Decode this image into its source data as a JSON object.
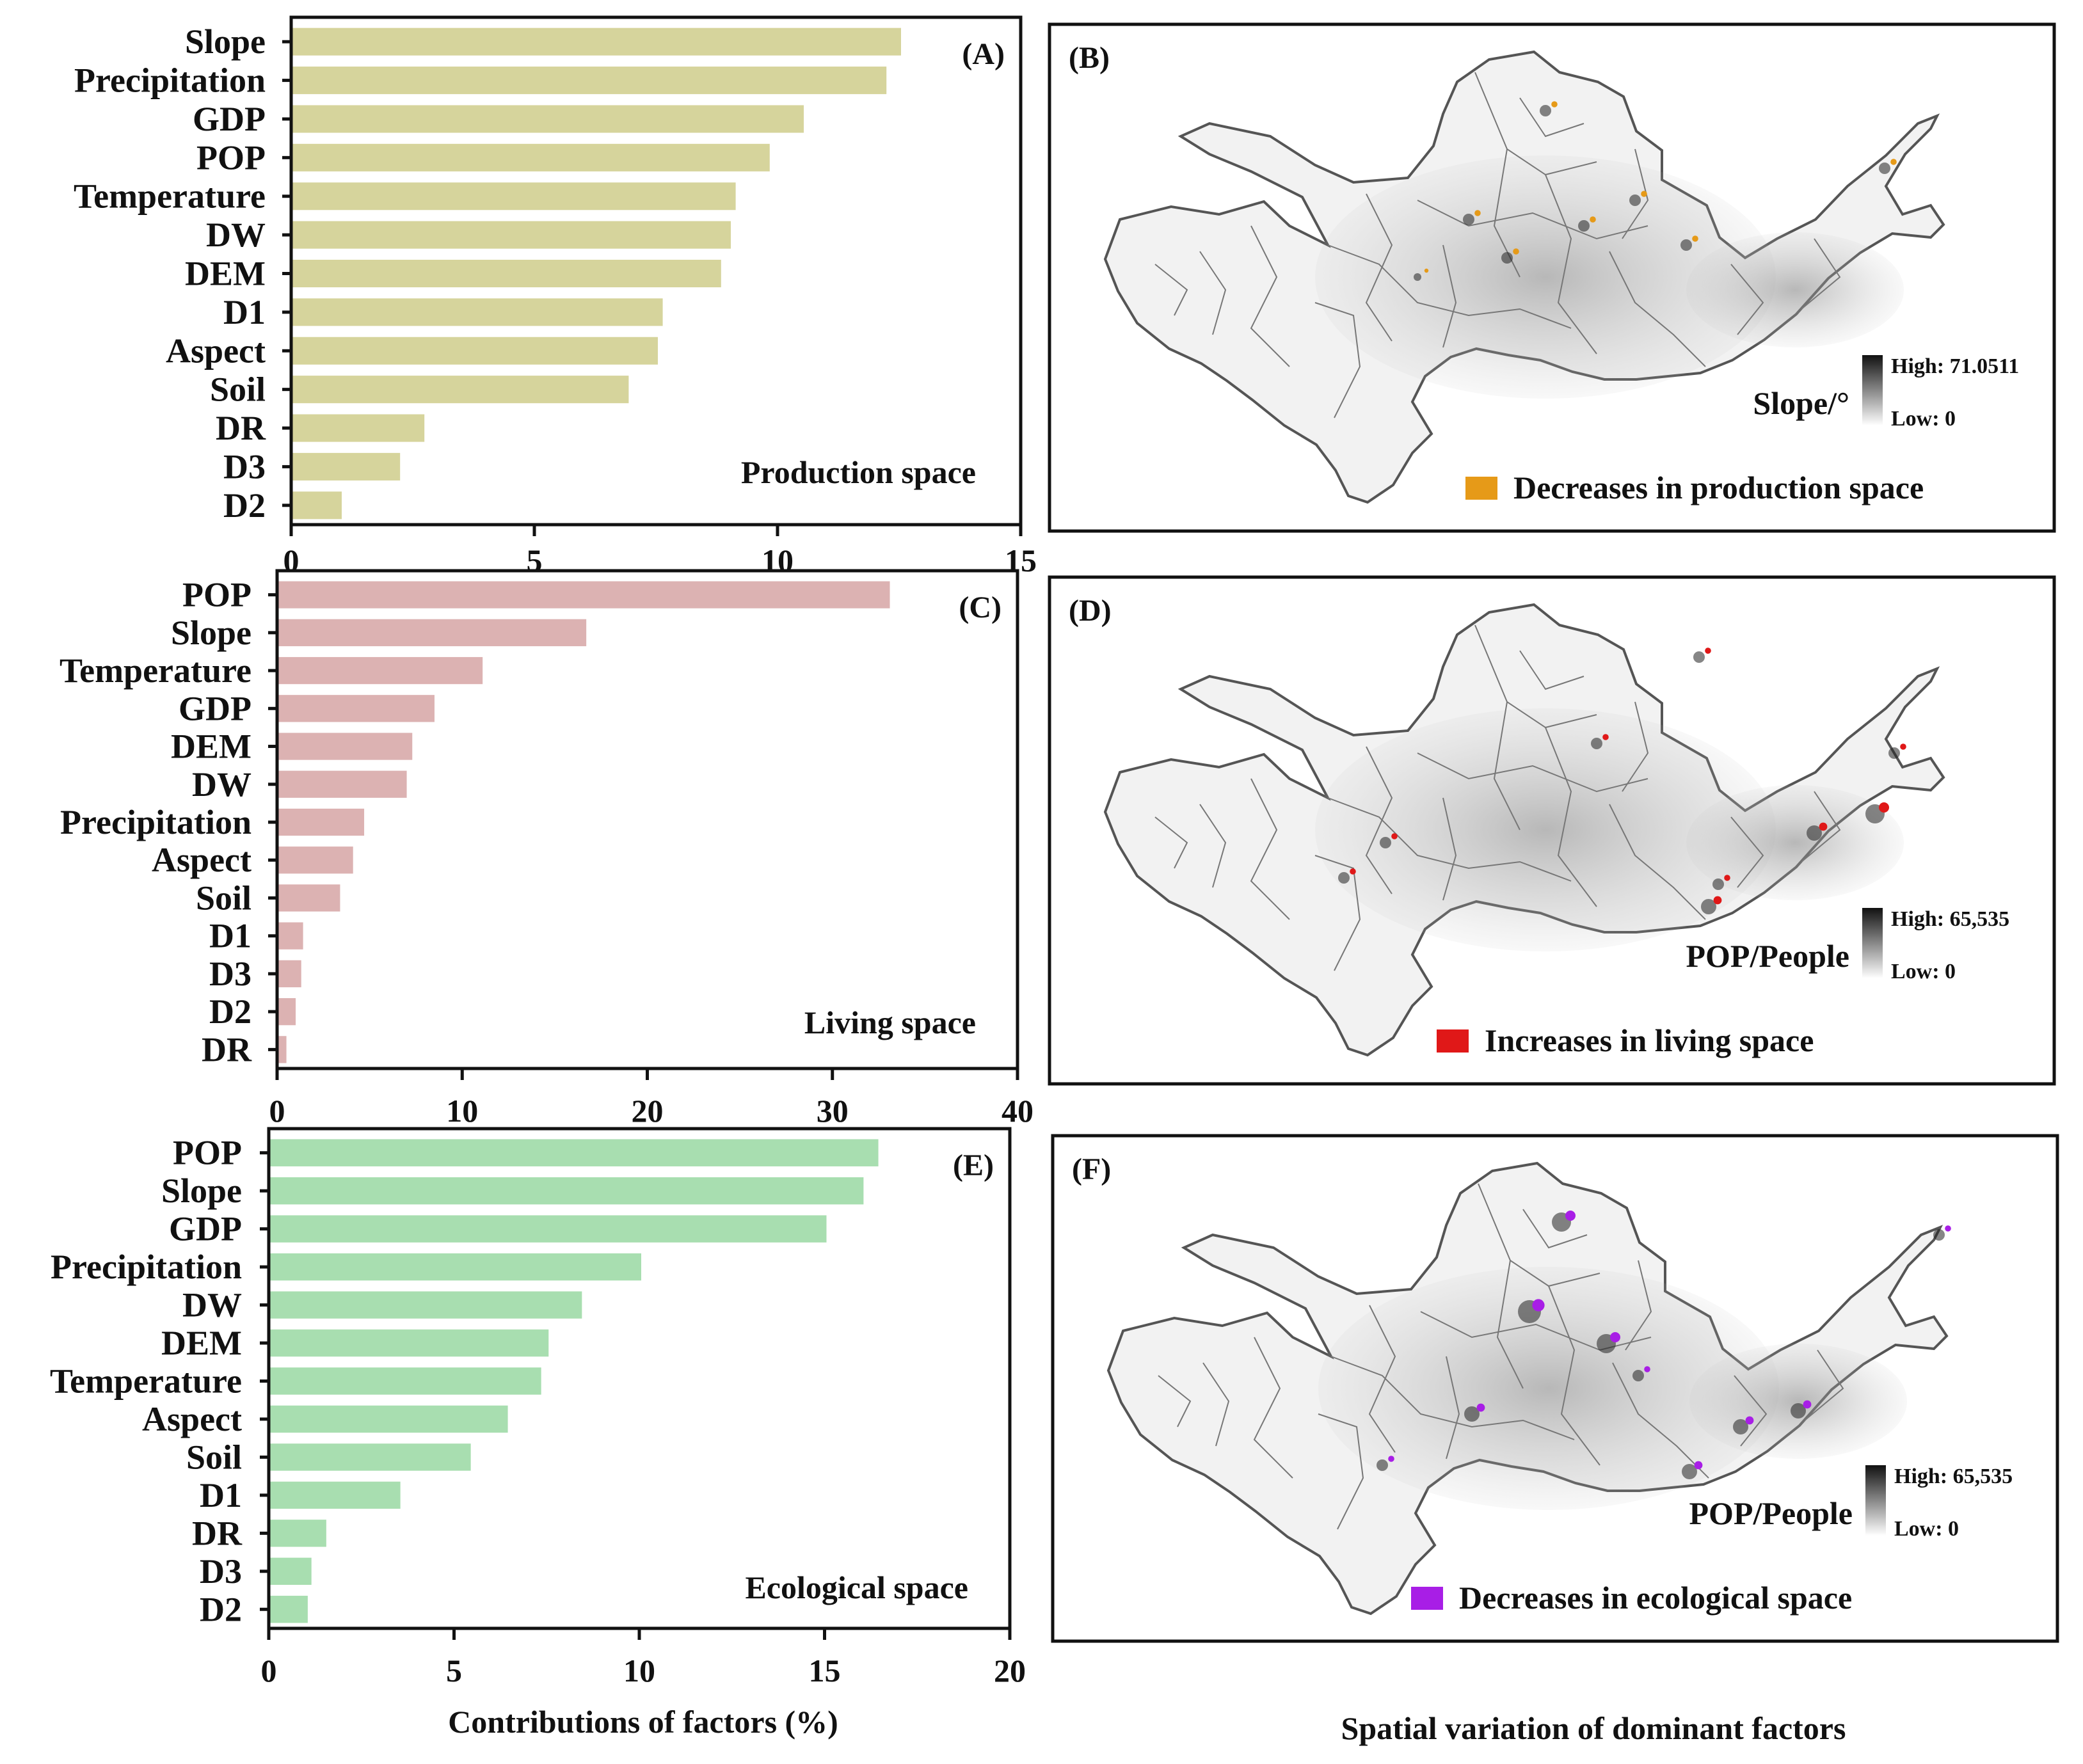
{
  "chart_data": [
    {
      "type": "bar",
      "orientation": "horizontal",
      "panel": "(A)",
      "inner_label": "Production space",
      "categories": [
        "Slope",
        "Precipitation",
        "GDP",
        "POP",
        "Temperature",
        "DW",
        "DEM",
        "D1",
        "Aspect",
        "Soil",
        "DR",
        "D3",
        "D2"
      ],
      "values": [
        12.5,
        12.2,
        10.5,
        9.8,
        9.1,
        9.0,
        8.8,
        7.6,
        7.5,
        6.9,
        2.7,
        2.2,
        1.0
      ],
      "xlim": [
        0,
        15
      ],
      "xticks": [
        "0",
        "5",
        "10",
        "15"
      ],
      "bar_color": "#d6d49c",
      "xlabel": ""
    },
    {
      "type": "bar",
      "orientation": "horizontal",
      "panel": "(C)",
      "inner_label": "Living space",
      "categories": [
        "POP",
        "Slope",
        "Temperature",
        "GDP",
        "DEM",
        "DW",
        "Precipitation",
        "Aspect",
        "Soil",
        "D1",
        "D3",
        "D2",
        "DR"
      ],
      "values": [
        33.0,
        16.6,
        11.0,
        8.4,
        7.2,
        6.9,
        4.6,
        4.0,
        3.3,
        1.3,
        1.2,
        0.9,
        0.4
      ],
      "xlim": [
        0,
        40
      ],
      "xticks": [
        "0",
        "10",
        "20",
        "30",
        "40"
      ],
      "bar_color": "#dcb2b2",
      "xlabel": ""
    },
    {
      "type": "bar",
      "orientation": "horizontal",
      "panel": "(E)",
      "inner_label": "Ecological space",
      "categories": [
        "POP",
        "Slope",
        "GDP",
        "Precipitation",
        "DW",
        "DEM",
        "Temperature",
        "Aspect",
        "Soil",
        "D1",
        "DR",
        "D3",
        "D2"
      ],
      "values": [
        16.4,
        16.0,
        15.0,
        10.0,
        8.4,
        7.5,
        7.3,
        6.4,
        5.4,
        3.5,
        1.5,
        1.1,
        1.0
      ],
      "xlim": [
        0,
        20
      ],
      "xticks": [
        "0",
        "5",
        "10",
        "15",
        "20"
      ],
      "bar_color": "#a8deb0",
      "xlabel": "Contributions of factors (%)"
    }
  ],
  "maps": [
    {
      "panel": "(B)",
      "variable": "Slope/°",
      "high": "High: 71.0511",
      "low": "Low: 0",
      "legend": "Decreases in production space",
      "legend_color": "#e69a18",
      "ramp_top": "#111111",
      "ramp_bottom": "#ffffff"
    },
    {
      "panel": "(D)",
      "variable": "POP/People",
      "high": "High: 65,535",
      "low": "Low: 0",
      "legend": "Increases in living space",
      "legend_color": "#e01818",
      "ramp_top": "#111111",
      "ramp_bottom": "#ffffff"
    },
    {
      "panel": "(F)",
      "variable": "POP/People",
      "high": "High: 65,535",
      "low": "Low: 0",
      "legend": "Decreases in ecological space",
      "legend_color": "#a81ee6",
      "ramp_top": "#111111",
      "ramp_bottom": "#ffffff"
    }
  ],
  "map_caption": "Spatial variation of dominant factors"
}
